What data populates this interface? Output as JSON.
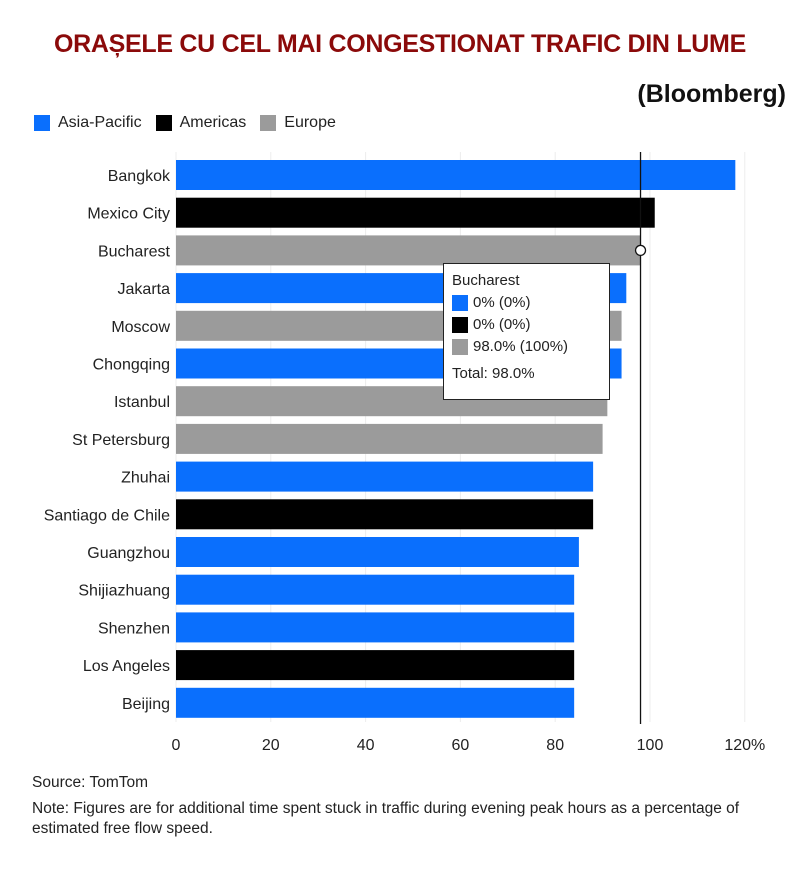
{
  "title": "ORAȘELE CU CEL MAI CONGESTIONAT TRAFIC DIN LUME",
  "subtitle": "(Bloomberg)",
  "colors": {
    "Asia-Pacific": "#0a6ffd",
    "Americas": "#000000",
    "Europe": "#9b9b9b",
    "title": "#8b0a0a"
  },
  "chart_data": {
    "type": "bar",
    "orientation": "horizontal",
    "legend": [
      "Asia-Pacific",
      "Americas",
      "Europe"
    ],
    "legend_position": "top-left",
    "categories": [
      "Bangkok",
      "Mexico City",
      "Bucharest",
      "Jakarta",
      "Moscow",
      "Chongqing",
      "Istanbul",
      "St Petersburg",
      "Zhuhai",
      "Santiago de Chile",
      "Guangzhou",
      "Shijiazhuang",
      "Shenzhen",
      "Los Angeles",
      "Beijing"
    ],
    "regions": [
      "Asia-Pacific",
      "Americas",
      "Europe",
      "Asia-Pacific",
      "Europe",
      "Asia-Pacific",
      "Europe",
      "Europe",
      "Asia-Pacific",
      "Americas",
      "Asia-Pacific",
      "Asia-Pacific",
      "Asia-Pacific",
      "Americas",
      "Asia-Pacific"
    ],
    "values": [
      118,
      101,
      98,
      95,
      94,
      94,
      91,
      90,
      88,
      88,
      85,
      84,
      84,
      84,
      84
    ],
    "xlim": [
      0,
      120
    ],
    "xticks": [
      0,
      20,
      40,
      60,
      80,
      100,
      120
    ],
    "xtick_labels": [
      "0",
      "20",
      "40",
      "60",
      "80",
      "100",
      "120%"
    ],
    "reference_line": 98,
    "grid": true
  },
  "tooltip": {
    "title": "Bucharest",
    "rows": [
      {
        "region": "Asia-Pacific",
        "text": "0%  (0%)"
      },
      {
        "region": "Americas",
        "text": "0%  (0%)"
      },
      {
        "region": "Europe",
        "text": "98.0%  (100%)"
      }
    ],
    "total": "Total: 98.0%"
  },
  "source": "Source: TomTom",
  "note": "Note: Figures are for additional time spent stuck in traffic during evening peak hours as a percentage of estimated free flow speed."
}
